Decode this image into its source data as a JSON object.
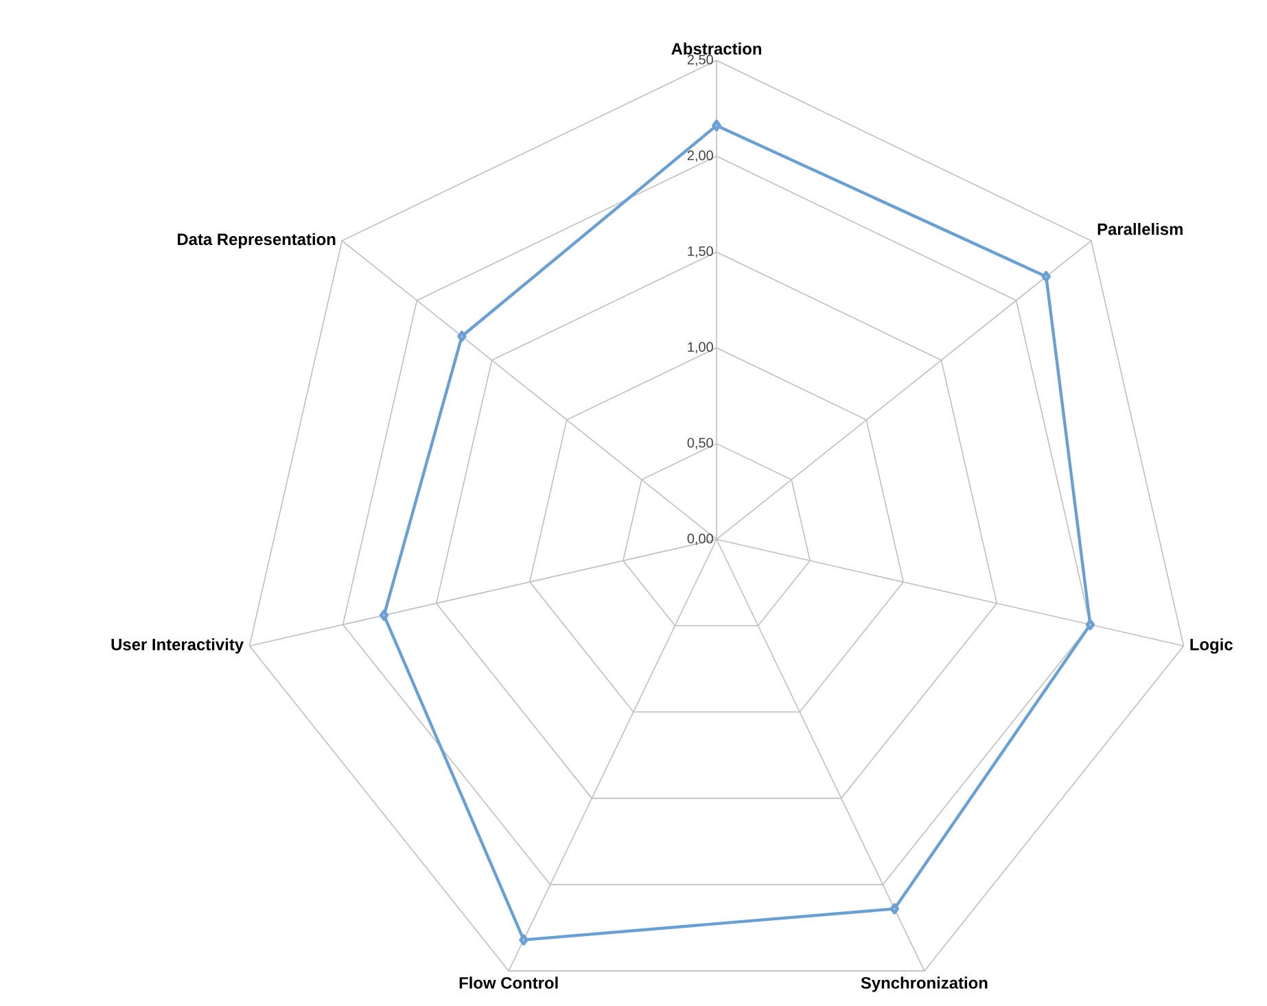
{
  "chart_data": {
    "type": "radar",
    "categories": [
      "Abstraction",
      "Parallelism",
      "Logic",
      "Synchronization",
      "Flow Control",
      "User Interactivity",
      "Data Representation"
    ],
    "series": [
      {
        "color": "#6a9fd4",
        "values": [
          2.16,
          2.2,
          2.0,
          2.14,
          2.32,
          1.78,
          1.7
        ]
      }
    ],
    "ylim": [
      0,
      2.5
    ],
    "yticks": [
      {
        "value": 0,
        "label": "0,00"
      },
      {
        "value": 0.5,
        "label": "0,50"
      },
      {
        "value": 1,
        "label": "1,00"
      },
      {
        "value": 1.5,
        "label": "1,50"
      },
      {
        "value": 2,
        "label": "2,00"
      },
      {
        "value": 2.5,
        "label": "2,50"
      }
    ],
    "grid": true,
    "marker": "diamond",
    "line_style": "solid",
    "legend": false
  }
}
